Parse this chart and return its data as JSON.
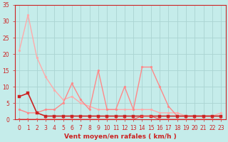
{
  "xlabel": "Vent moyen/en rafales ( km/h )",
  "xlim": [
    -0.5,
    23.5
  ],
  "ylim": [
    0,
    35
  ],
  "yticks": [
    0,
    5,
    10,
    15,
    20,
    25,
    30,
    35
  ],
  "xticks": [
    0,
    1,
    2,
    3,
    4,
    5,
    6,
    7,
    8,
    9,
    10,
    11,
    12,
    13,
    14,
    15,
    16,
    17,
    18,
    19,
    20,
    21,
    22,
    23
  ],
  "background_color": "#c5ecea",
  "grid_color": "#aad4d2",
  "series": [
    {
      "x": [
        0,
        1,
        2,
        3,
        4,
        5,
        6,
        7,
        8,
        9,
        10,
        11,
        12,
        13,
        14,
        15,
        16,
        17,
        18,
        19,
        20,
        21,
        22,
        23
      ],
      "y": [
        21,
        32,
        19,
        13,
        9,
        6,
        7,
        5,
        4,
        3,
        3,
        3,
        3,
        3,
        3,
        3,
        2,
        2,
        2,
        1,
        1,
        1,
        1,
        2
      ],
      "color": "#ffaaaa",
      "linewidth": 1.0,
      "marker": "o",
      "markersize": 2.0
    },
    {
      "x": [
        0,
        1,
        2,
        3,
        4,
        5,
        6,
        7,
        8,
        9,
        10,
        11,
        12,
        13,
        14,
        15,
        16,
        17,
        18,
        19,
        20,
        21,
        22,
        23
      ],
      "y": [
        3,
        2,
        2,
        3,
        3,
        5,
        11,
        6,
        3,
        15,
        3,
        3,
        10,
        3,
        16,
        16,
        10,
        4,
        1,
        1,
        1,
        1,
        1,
        1
      ],
      "color": "#ff8888",
      "linewidth": 1.0,
      "marker": "o",
      "markersize": 2.0
    },
    {
      "x": [
        0,
        1,
        2,
        3,
        4,
        5,
        6,
        7,
        8,
        9,
        10,
        11,
        12,
        13,
        14,
        15,
        16,
        17,
        18,
        19,
        20,
        21,
        22,
        23
      ],
      "y": [
        7,
        8,
        2,
        1,
        1,
        1,
        1,
        1,
        1,
        1,
        1,
        1,
        1,
        1,
        1,
        1,
        1,
        1,
        1,
        1,
        1,
        1,
        1,
        1
      ],
      "color": "#cc2222",
      "linewidth": 1.2,
      "marker": "s",
      "markersize": 2.5
    },
    {
      "x": [
        0,
        1,
        2,
        3,
        4,
        5,
        6,
        7,
        8,
        9,
        10,
        11,
        12,
        13,
        14,
        15,
        16,
        17,
        18,
        19,
        20,
        21,
        22,
        23
      ],
      "y": [
        0,
        0,
        0,
        0,
        0,
        0,
        0,
        0,
        0,
        0,
        0,
        0,
        0,
        0,
        1,
        1,
        0,
        0,
        0,
        0,
        0,
        0,
        0,
        0
      ],
      "color": "#ee4444",
      "linewidth": 0.8,
      "marker": "s",
      "markersize": 2.0
    }
  ],
  "xlabel_fontsize": 6.5,
  "tick_fontsize": 5.5,
  "spine_color": "#cc2222",
  "tick_color": "#cc2222",
  "label_color": "#cc2222"
}
